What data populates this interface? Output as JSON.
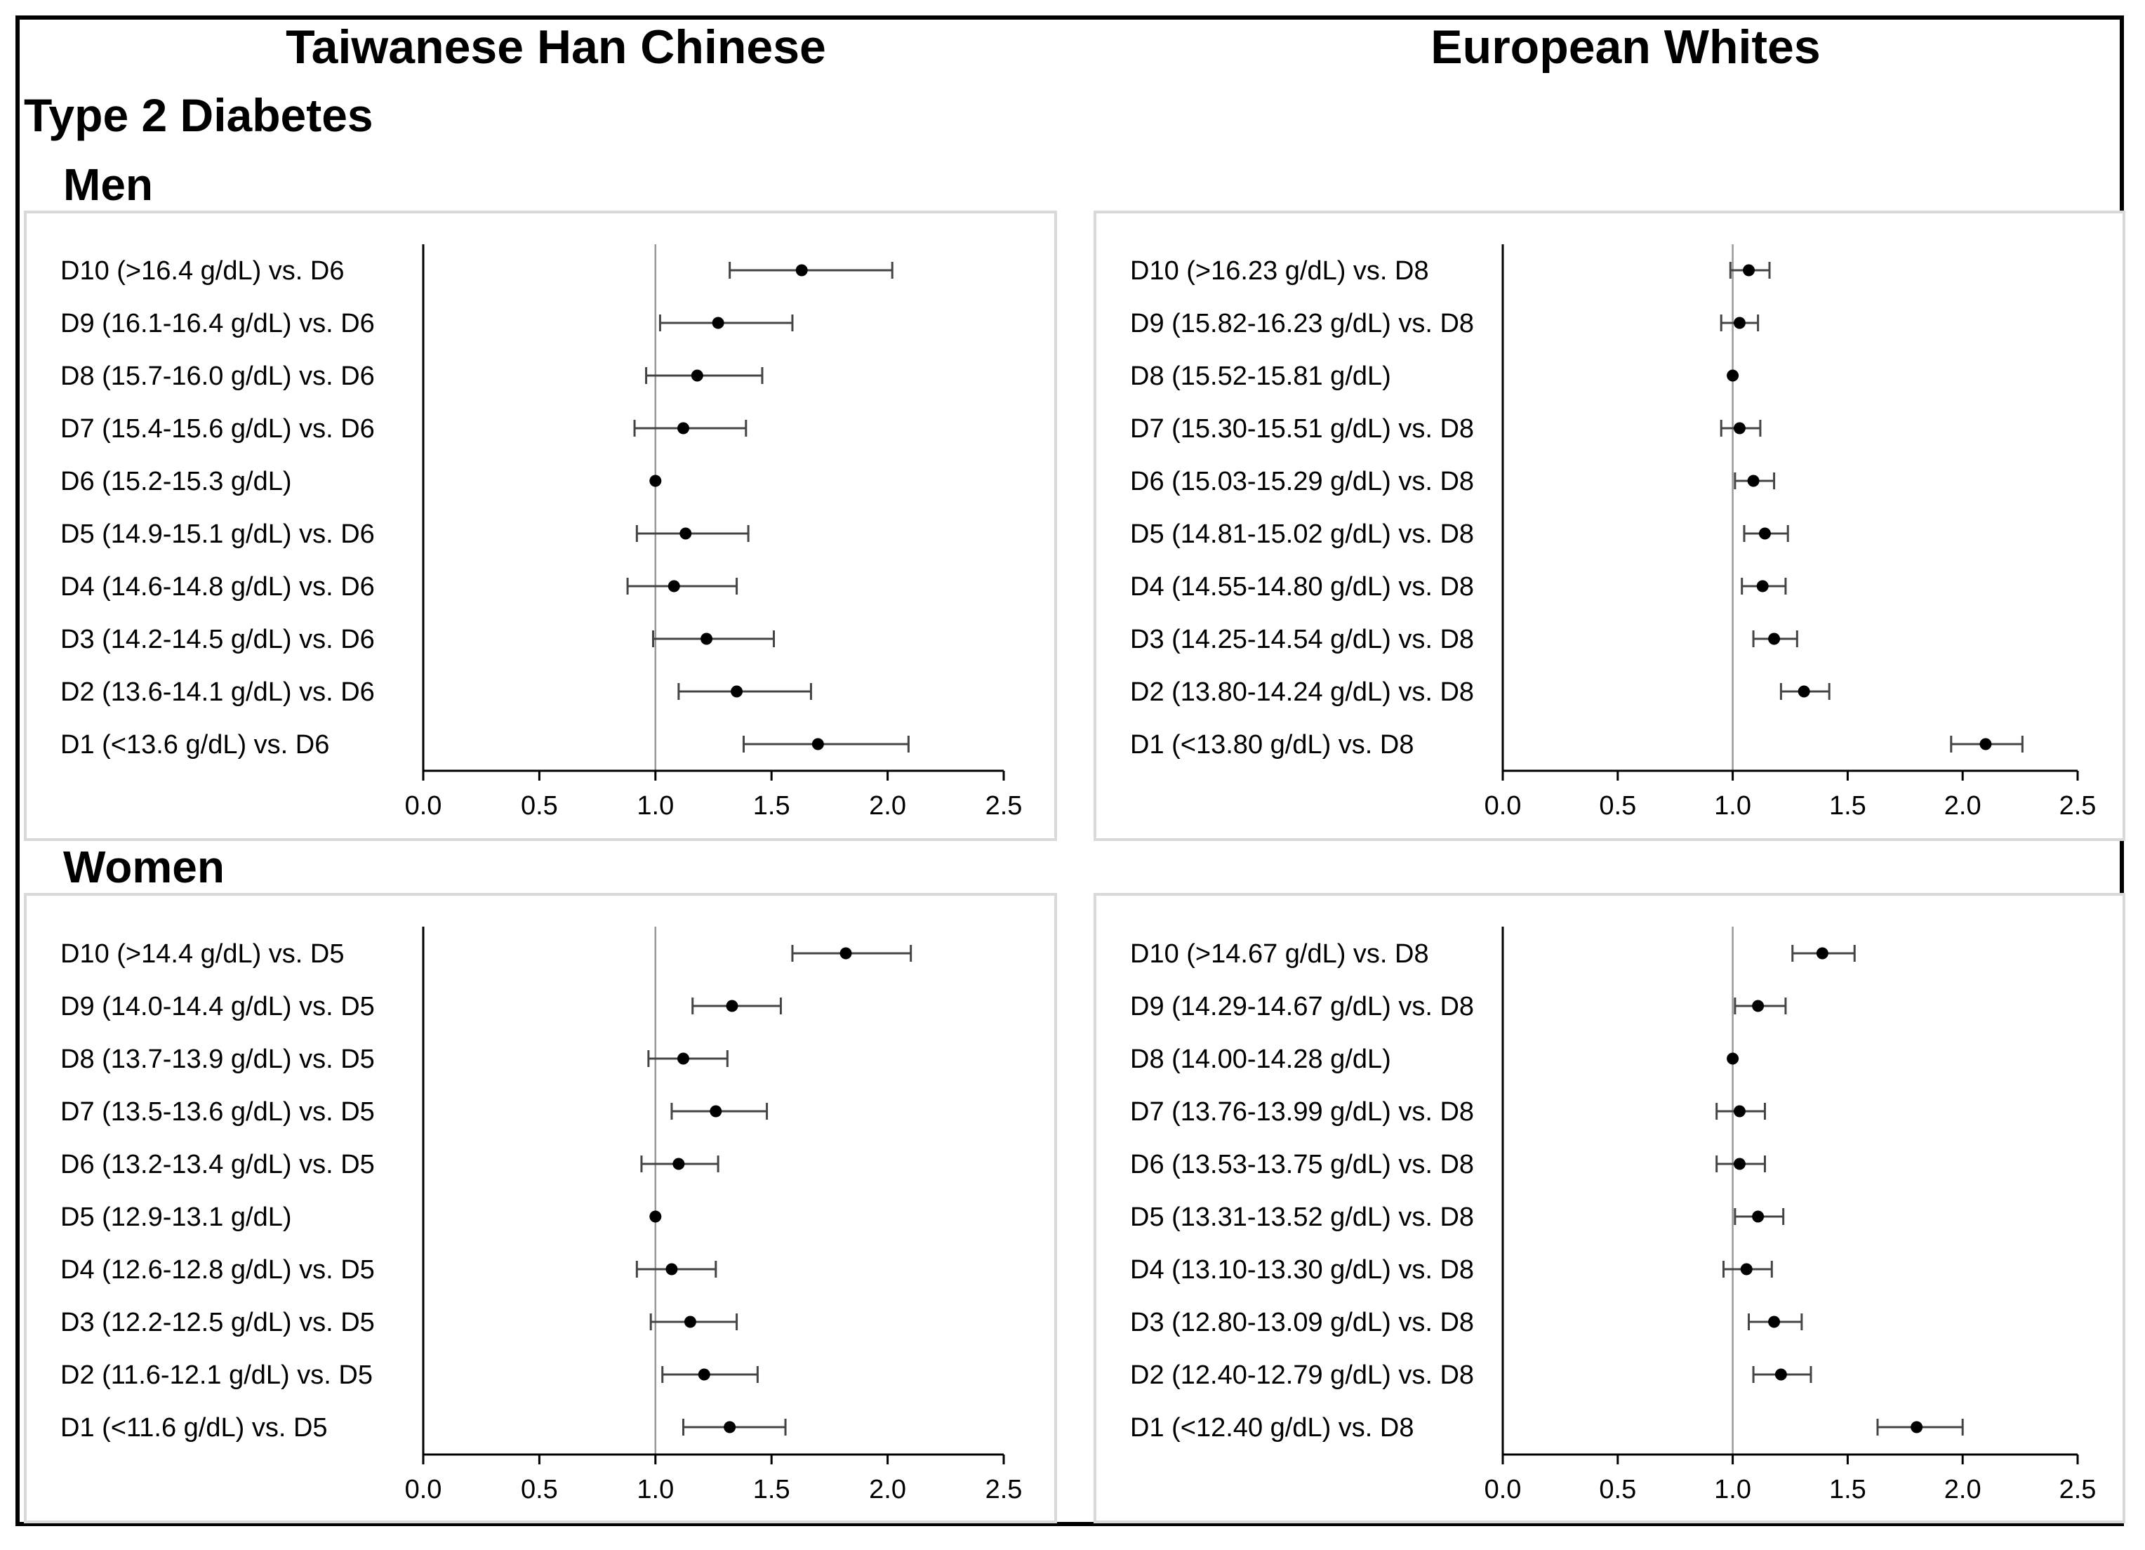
{
  "header": {
    "left_title": "Taiwanese Han Chinese",
    "right_title": "European Whites",
    "section_title": "Type 2 Diabetes",
    "men_title": "Men",
    "women_title": "Women"
  },
  "chart_data": [
    {
      "type": "scatter",
      "panel": "men-taiwanese",
      "xlim": [
        0,
        2.5
      ],
      "xticks": [
        "0.0",
        "0.5",
        "1.0",
        "1.5",
        "2.0",
        "2.5"
      ],
      "reference_line": 1.0,
      "categories": [
        "D10 (>16.4 g/dL) vs. D6",
        "D9 (16.1-16.4 g/dL) vs. D6",
        "D8 (15.7-16.0 g/dL) vs. D6",
        "D7 (15.4-15.6 g/dL) vs. D6",
        "D6 (15.2-15.3 g/dL)",
        "D5 (14.9-15.1 g/dL) vs. D6",
        "D4 (14.6-14.8 g/dL) vs. D6",
        "D3 (14.2-14.5 g/dL) vs. D6",
        "D2 (13.6-14.1 g/dL) vs. D6",
        "D1 (<13.6 g/dL) vs. D6"
      ],
      "values": [
        1.63,
        1.27,
        1.18,
        1.12,
        1.0,
        1.13,
        1.08,
        1.22,
        1.35,
        1.7
      ],
      "lower": [
        1.32,
        1.02,
        0.96,
        0.91,
        null,
        0.92,
        0.88,
        0.99,
        1.1,
        1.38
      ],
      "upper": [
        2.02,
        1.59,
        1.46,
        1.39,
        null,
        1.4,
        1.35,
        1.51,
        1.67,
        2.09
      ]
    },
    {
      "type": "scatter",
      "panel": "men-european",
      "xlim": [
        0,
        2.5
      ],
      "xticks": [
        "0.0",
        "0.5",
        "1.0",
        "1.5",
        "2.0",
        "2.5"
      ],
      "reference_line": 1.0,
      "categories": [
        "D10 (>16.23 g/dL) vs. D8",
        "D9 (15.82-16.23 g/dL) vs. D8",
        "D8 (15.52-15.81 g/dL)",
        "D7 (15.30-15.51 g/dL) vs. D8",
        "D6 (15.03-15.29 g/dL) vs. D8",
        "D5 (14.81-15.02 g/dL) vs. D8",
        "D4 (14.55-14.80 g/dL) vs. D8",
        "D3 (14.25-14.54 g/dL) vs. D8",
        "D2 (13.80-14.24 g/dL) vs. D8",
        "D1 (<13.80 g/dL) vs. D8"
      ],
      "values": [
        1.07,
        1.03,
        1.0,
        1.03,
        1.09,
        1.14,
        1.13,
        1.18,
        1.31,
        2.1
      ],
      "lower": [
        0.99,
        0.95,
        null,
        0.95,
        1.01,
        1.05,
        1.04,
        1.09,
        1.21,
        1.95
      ],
      "upper": [
        1.16,
        1.11,
        null,
        1.12,
        1.18,
        1.24,
        1.23,
        1.28,
        1.42,
        2.26
      ]
    },
    {
      "type": "scatter",
      "panel": "women-taiwanese",
      "xlim": [
        0,
        2.5
      ],
      "xticks": [
        "0.0",
        "0.5",
        "1.0",
        "1.5",
        "2.0",
        "2.5"
      ],
      "reference_line": 1.0,
      "categories": [
        "D10 (>14.4 g/dL) vs. D5",
        "D9 (14.0-14.4 g/dL) vs. D5",
        "D8 (13.7-13.9 g/dL) vs. D5",
        "D7 (13.5-13.6 g/dL) vs. D5",
        "D6 (13.2-13.4 g/dL) vs. D5",
        "D5 (12.9-13.1 g/dL)",
        "D4 (12.6-12.8 g/dL) vs. D5",
        "D3 (12.2-12.5 g/dL) vs. D5",
        "D2 (11.6-12.1 g/dL) vs. D5",
        "D1 (<11.6 g/dL) vs. D5"
      ],
      "values": [
        1.82,
        1.33,
        1.12,
        1.26,
        1.1,
        1.0,
        1.07,
        1.15,
        1.21,
        1.32
      ],
      "lower": [
        1.59,
        1.16,
        0.97,
        1.07,
        0.94,
        null,
        0.92,
        0.98,
        1.03,
        1.12
      ],
      "upper": [
        2.1,
        1.54,
        1.31,
        1.48,
        1.27,
        null,
        1.26,
        1.35,
        1.44,
        1.56
      ]
    },
    {
      "type": "scatter",
      "panel": "women-european",
      "xlim": [
        0,
        2.5
      ],
      "xticks": [
        "0.0",
        "0.5",
        "1.0",
        "1.5",
        "2.0",
        "2.5"
      ],
      "reference_line": 1.0,
      "categories": [
        "D10 (>14.67 g/dL) vs. D8",
        "D9 (14.29-14.67 g/dL) vs. D8",
        "D8 (14.00-14.28 g/dL)",
        "D7 (13.76-13.99 g/dL) vs. D8",
        "D6 (13.53-13.75 g/dL) vs. D8",
        "D5 (13.31-13.52 g/dL) vs. D8",
        "D4 (13.10-13.30 g/dL) vs. D8",
        "D3 (12.80-13.09 g/dL) vs. D8",
        "D2 (12.40-12.79 g/dL) vs. D8",
        "D1 (<12.40 g/dL) vs. D8"
      ],
      "values": [
        1.39,
        1.11,
        1.0,
        1.03,
        1.03,
        1.11,
        1.06,
        1.18,
        1.21,
        1.8
      ],
      "lower": [
        1.26,
        1.01,
        null,
        0.93,
        0.93,
        1.01,
        0.96,
        1.07,
        1.09,
        1.63
      ],
      "upper": [
        1.53,
        1.23,
        null,
        1.14,
        1.14,
        1.22,
        1.17,
        1.3,
        1.34,
        2.0
      ]
    }
  ]
}
